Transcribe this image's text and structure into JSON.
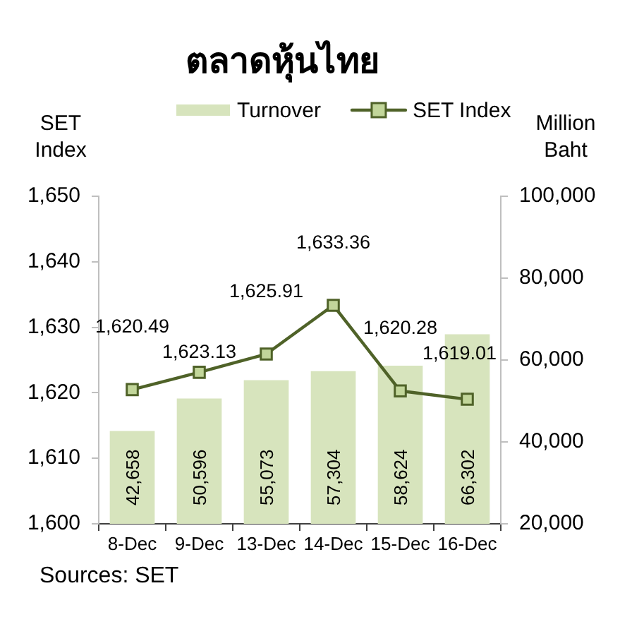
{
  "chart_data": {
    "type": "bar",
    "title": "ตลาดหุ้นไทย",
    "categories": [
      "8-Dec",
      "9-Dec",
      "13-Dec",
      "14-Dec",
      "15-Dec",
      "16-Dec"
    ],
    "series": [
      {
        "name": "Turnover",
        "axis": "y2",
        "color": "#d7e4bd",
        "values": [
          42658,
          50596,
          55073,
          57304,
          58624,
          66302
        ],
        "value_labels": [
          "42,658",
          "50,596",
          "55,073",
          "57,304",
          "58,624",
          "66,302"
        ]
      },
      {
        "name": "SET Index",
        "type": "line",
        "axis": "y",
        "color": "#4f6228",
        "values": [
          1620.49,
          1623.13,
          1625.91,
          1633.36,
          1620.28,
          1619.01
        ],
        "value_labels": [
          "1,620.49",
          "1,623.13",
          "1,625.91",
          "1,633.36",
          "1,620.28",
          "1,619.01"
        ]
      }
    ],
    "ylabel": "SET Index",
    "y2label": "Million Baht",
    "ylim": [
      1600,
      1650
    ],
    "yticks": [
      {
        "value": 1600,
        "label": "1,600"
      },
      {
        "value": 1610,
        "label": "1,610"
      },
      {
        "value": 1620,
        "label": "1,620"
      },
      {
        "value": 1630,
        "label": "1,630"
      },
      {
        "value": 1640,
        "label": "1,640"
      },
      {
        "value": 1650,
        "label": "1,650"
      }
    ],
    "y2lim": [
      20000,
      100000
    ],
    "y2ticks": [
      {
        "value": 20000,
        "label": "20,000"
      },
      {
        "value": 40000,
        "label": "40,000"
      },
      {
        "value": 60000,
        "label": "60,000"
      },
      {
        "value": 80000,
        "label": "80,000"
      },
      {
        "value": 100000,
        "label": "100,000"
      }
    ],
    "legend": "top",
    "grid": false,
    "marker": "square",
    "annotations": [
      "Sources: SET"
    ]
  }
}
